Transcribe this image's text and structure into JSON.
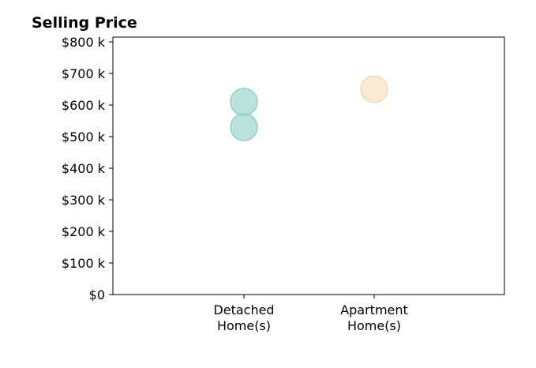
{
  "chart_data": {
    "type": "scatter",
    "title": "Selling Price",
    "xlabel": "",
    "ylabel": "",
    "categories": [
      "Detached\nHome(s)",
      "Apartment\nHome(s)"
    ],
    "ylim": [
      0,
      800000
    ],
    "yticks": [
      0,
      100000,
      200000,
      300000,
      400000,
      500000,
      600000,
      700000,
      800000
    ],
    "ytick_labels": [
      "$0",
      "$100 k",
      "$200 k",
      "$300 k",
      "$400 k",
      "$500 k",
      "$600 k",
      "$700 k",
      "$800 k"
    ],
    "grid": false,
    "series": [
      {
        "category": "Detached\nHome(s)",
        "color": "#8ecfc6",
        "values": [
          610000,
          530000
        ]
      },
      {
        "category": "Apartment\nHome(s)",
        "color": "#f3deb4",
        "values": [
          650000
        ]
      }
    ]
  }
}
